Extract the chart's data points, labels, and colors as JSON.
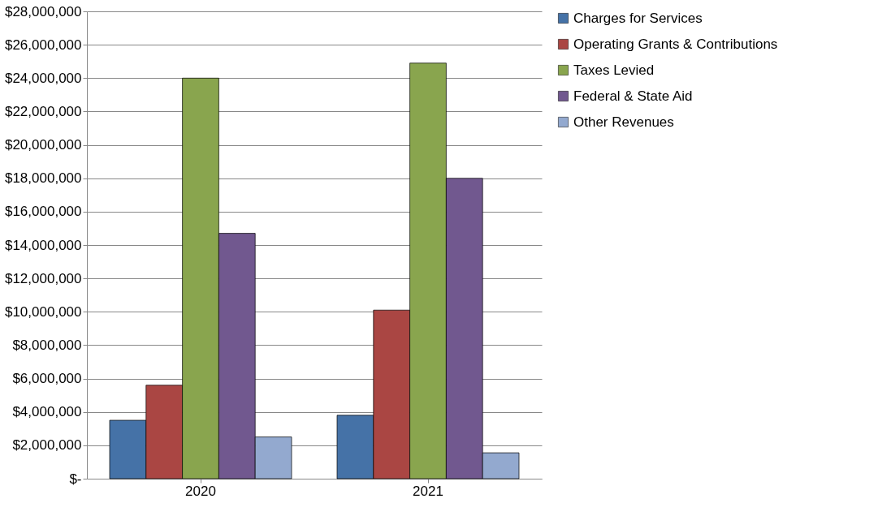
{
  "chart_data": {
    "type": "bar",
    "categories": [
      "2020",
      "2021"
    ],
    "series": [
      {
        "name": "Charges for Services",
        "color": "#4572a7",
        "values": [
          3500000,
          3800000
        ]
      },
      {
        "name": "Operating Grants & Contributions",
        "color": "#aa4643",
        "values": [
          5600000,
          10100000
        ]
      },
      {
        "name": "Taxes Levied",
        "color": "#89a54e",
        "values": [
          24000000,
          24900000
        ]
      },
      {
        "name": "Federal & State Aid",
        "color": "#71588f",
        "values": [
          14700000,
          18000000
        ]
      },
      {
        "name": "Other Revenues",
        "color": "#93a9cf",
        "values": [
          2500000,
          1550000
        ]
      }
    ],
    "ylim": [
      0,
      28000000
    ],
    "yticks": [
      {
        "value": 0,
        "label": "$-"
      },
      {
        "value": 2000000,
        "label": "$2,000,000"
      },
      {
        "value": 4000000,
        "label": "$4,000,000"
      },
      {
        "value": 6000000,
        "label": "$6,000,000"
      },
      {
        "value": 8000000,
        "label": "$8,000,000"
      },
      {
        "value": 10000000,
        "label": "$10,000,000"
      },
      {
        "value": 12000000,
        "label": "$12,000,000"
      },
      {
        "value": 14000000,
        "label": "$14,000,000"
      },
      {
        "value": 16000000,
        "label": "$16,000,000"
      },
      {
        "value": 18000000,
        "label": "$18,000,000"
      },
      {
        "value": 20000000,
        "label": "$20,000,000"
      },
      {
        "value": 22000000,
        "label": "$22,000,000"
      },
      {
        "value": 24000000,
        "label": "$24,000,000"
      },
      {
        "value": 26000000,
        "label": "$26,000,000"
      },
      {
        "value": 28000000,
        "label": "$28,000,000"
      }
    ],
    "grid": "y",
    "legend": "right"
  }
}
